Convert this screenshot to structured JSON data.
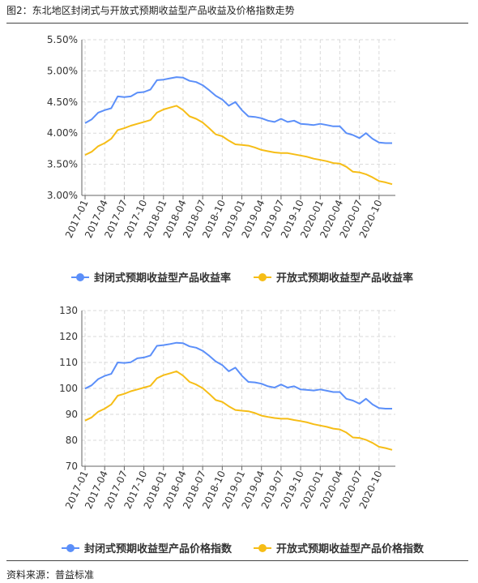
{
  "figure_title": "图2：东北地区封闭式与开放式预期收益型产品收益及价格指数走势",
  "source": "资料来源：普益标准",
  "chart_data": [
    {
      "type": "line",
      "x": [
        "2017-01",
        "2017-02",
        "2017-03",
        "2017-04",
        "2017-05",
        "2017-06",
        "2017-07",
        "2017-08",
        "2017-09",
        "2017-10",
        "2017-11",
        "2017-12",
        "2018-01",
        "2018-02",
        "2018-03",
        "2018-04",
        "2018-05",
        "2018-06",
        "2018-07",
        "2018-08",
        "2018-09",
        "2018-10",
        "2018-11",
        "2018-12",
        "2019-01",
        "2019-02",
        "2019-03",
        "2019-04",
        "2019-05",
        "2019-06",
        "2019-07",
        "2019-08",
        "2019-09",
        "2019-10",
        "2019-11",
        "2019-12",
        "2020-01",
        "2020-02",
        "2020-03",
        "2020-04",
        "2020-05",
        "2020-06",
        "2020-07",
        "2020-08",
        "2020-09",
        "2020-10",
        "2020-11",
        "2020-12"
      ],
      "tick_labels": [
        "2017-01",
        "2017-04",
        "2017-07",
        "2017-10",
        "2018-01",
        "2018-04",
        "2018-07",
        "2018-10",
        "2019-01",
        "2019-04",
        "2019-07",
        "2019-10",
        "2020-01",
        "2020-04",
        "2020-07",
        "2020-10"
      ],
      "y_ticks": [
        "3.00%",
        "3.50%",
        "4.00%",
        "4.50%",
        "5.00%",
        "5.50%"
      ],
      "ylim": [
        3.0,
        5.5
      ],
      "grid": true,
      "legend": "bottom",
      "series": [
        {
          "name": "封闭式预期收益型产品收益率",
          "color": "#5b8ff9",
          "values": [
            4.16,
            4.22,
            4.33,
            4.37,
            4.4,
            4.59,
            4.58,
            4.59,
            4.65,
            4.66,
            4.7,
            4.85,
            4.86,
            4.88,
            4.9,
            4.89,
            4.84,
            4.82,
            4.77,
            4.69,
            4.6,
            4.54,
            4.44,
            4.5,
            4.37,
            4.27,
            4.26,
            4.24,
            4.2,
            4.18,
            4.23,
            4.18,
            4.2,
            4.15,
            4.14,
            4.13,
            4.15,
            4.13,
            4.11,
            4.11,
            4.0,
            3.97,
            3.92,
            4.0,
            3.91,
            3.85,
            3.84,
            3.84
          ]
        },
        {
          "name": "开放式预期收益型产品收益率",
          "color": "#f6bd16",
          "values": [
            3.65,
            3.7,
            3.79,
            3.84,
            3.91,
            4.05,
            4.08,
            4.12,
            4.15,
            4.18,
            4.21,
            4.33,
            4.38,
            4.41,
            4.44,
            4.37,
            4.27,
            4.23,
            4.17,
            4.08,
            3.98,
            3.95,
            3.88,
            3.82,
            3.81,
            3.8,
            3.77,
            3.73,
            3.71,
            3.69,
            3.68,
            3.68,
            3.66,
            3.64,
            3.62,
            3.59,
            3.57,
            3.55,
            3.52,
            3.51,
            3.46,
            3.38,
            3.37,
            3.34,
            3.29,
            3.23,
            3.21,
            3.18
          ]
        }
      ]
    },
    {
      "type": "line",
      "x": [
        "2017-01",
        "2017-02",
        "2017-03",
        "2017-04",
        "2017-05",
        "2017-06",
        "2017-07",
        "2017-08",
        "2017-09",
        "2017-10",
        "2017-11",
        "2017-12",
        "2018-01",
        "2018-02",
        "2018-03",
        "2018-04",
        "2018-05",
        "2018-06",
        "2018-07",
        "2018-08",
        "2018-09",
        "2018-10",
        "2018-11",
        "2018-12",
        "2019-01",
        "2019-02",
        "2019-03",
        "2019-04",
        "2019-05",
        "2019-06",
        "2019-07",
        "2019-08",
        "2019-09",
        "2019-10",
        "2019-11",
        "2019-12",
        "2020-01",
        "2020-02",
        "2020-03",
        "2020-04",
        "2020-05",
        "2020-06",
        "2020-07",
        "2020-08",
        "2020-09",
        "2020-10",
        "2020-11",
        "2020-12"
      ],
      "tick_labels": [
        "2017-01",
        "2017-04",
        "2017-07",
        "2017-10",
        "2018-01",
        "2018-04",
        "2018-07",
        "2018-10",
        "2019-01",
        "2019-04",
        "2019-07",
        "2019-10",
        "2020-01",
        "2020-04",
        "2020-07",
        "2020-10"
      ],
      "y_ticks": [
        "70",
        "80",
        "90",
        "100",
        "110",
        "120",
        "130"
      ],
      "ylim": [
        70,
        130
      ],
      "grid": true,
      "legend": "bottom",
      "series": [
        {
          "name": "封闭式预期收益型产品价格指数",
          "color": "#5b8ff9",
          "values": [
            99.9,
            101.2,
            103.6,
            104.8,
            105.6,
            110.0,
            109.8,
            110.1,
            111.6,
            111.9,
            112.7,
            116.4,
            116.7,
            117.1,
            117.6,
            117.4,
            116.2,
            115.7,
            114.5,
            112.6,
            110.4,
            109.0,
            106.6,
            108.0,
            104.9,
            102.5,
            102.3,
            101.8,
            100.8,
            100.3,
            101.5,
            100.3,
            100.8,
            99.6,
            99.4,
            99.2,
            99.6,
            99.1,
            98.6,
            98.6,
            96.0,
            95.3,
            94.1,
            96.0,
            93.8,
            92.4,
            92.2,
            92.2
          ]
        },
        {
          "name": "开放式预期收益型产品价格指数",
          "color": "#f6bd16",
          "values": [
            87.6,
            88.8,
            91.0,
            92.2,
            93.8,
            97.2,
            97.9,
            98.9,
            99.6,
            100.3,
            101.0,
            103.9,
            105.1,
            105.8,
            106.6,
            104.9,
            102.5,
            101.5,
            100.1,
            97.9,
            95.5,
            94.8,
            93.1,
            91.7,
            91.4,
            91.2,
            90.5,
            89.5,
            89.0,
            88.6,
            88.3,
            88.3,
            87.8,
            87.4,
            86.9,
            86.2,
            85.7,
            85.2,
            84.5,
            84.2,
            83.0,
            81.1,
            80.9,
            80.2,
            79.0,
            77.5,
            77.0,
            76.3
          ]
        }
      ]
    }
  ]
}
